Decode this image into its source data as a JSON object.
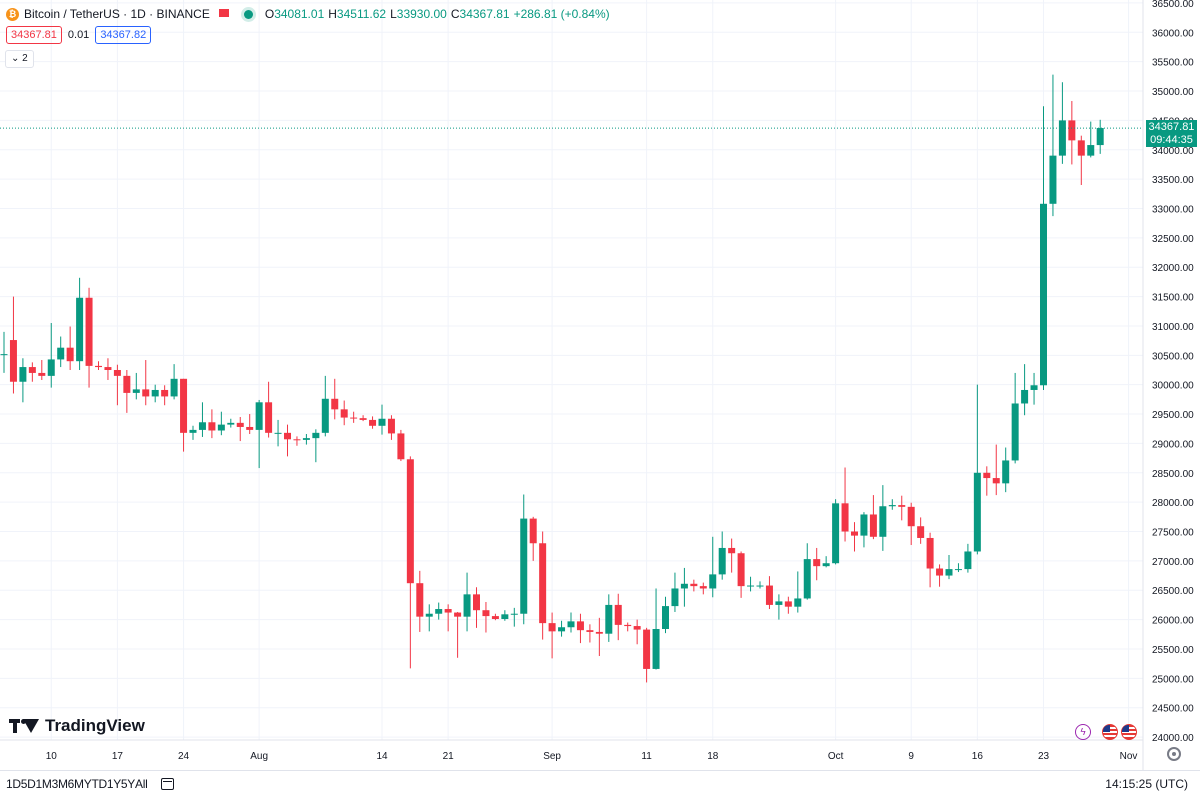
{
  "legend": {
    "symbol": "Bitcoin / TetherUS · 1D · BINANCE",
    "logo_text": "₿",
    "open_label": "O",
    "open": "34081.01",
    "high_label": "H",
    "high": "34511.62",
    "low_label": "L",
    "low": "33930.00",
    "close_label": "C",
    "close": "34367.81",
    "change": "+286.81 (+0.84%)"
  },
  "trade": {
    "sell": "34367.81",
    "spread": "0.01",
    "buy": "34367.82"
  },
  "indicators_toggle": "2",
  "logo_text": "TradingView",
  "last_price_label": {
    "price": "34367.81",
    "countdown": "09:44:35"
  },
  "footer": {
    "ranges": [
      "1D",
      "5D",
      "1M",
      "3M",
      "6M",
      "YTD",
      "1Y",
      "5Y",
      "All"
    ],
    "time": "14:15:25 (UTC)"
  },
  "colors": {
    "up": "#089981",
    "down": "#f23645",
    "text": "#131722",
    "grid": "#f0f3fa",
    "axis_text": "#131722"
  },
  "icons": [
    "bitcoin-logo-icon",
    "flag-icon",
    "market-open-dot-icon",
    "chevron-down-icon",
    "flash-icon",
    "us-flag-icon",
    "calendar-icon",
    "gear-icon"
  ],
  "chart_data": {
    "type": "candlestick",
    "title": "Bitcoin / TetherUS · 1D · BINANCE",
    "ylim": [
      23950,
      36550
    ],
    "y_ticks": [
      "36500.00",
      "36000.00",
      "35500.00",
      "35000.00",
      "34500.00",
      "34000.00",
      "33500.00",
      "33000.00",
      "32500.00",
      "32000.00",
      "31500.00",
      "31000.00",
      "30500.00",
      "30000.00",
      "29500.00",
      "29000.00",
      "28500.00",
      "28000.00",
      "27500.00",
      "27000.00",
      "26500.00",
      "26000.00",
      "25500.00",
      "25000.00",
      "24500.00",
      "24000.00"
    ],
    "x_ticks": [
      "10",
      "17",
      "24",
      "Aug",
      "14",
      "21",
      "Sep",
      "11",
      "18",
      "Oct",
      "9",
      "16",
      "23",
      "Nov"
    ],
    "x_tick_dates": [
      "2023-07-10",
      "2023-07-17",
      "2023-07-24",
      "2023-08-01",
      "2023-08-14",
      "2023-08-21",
      "2023-09-01",
      "2023-09-11",
      "2023-09-18",
      "2023-10-01",
      "2023-10-09",
      "2023-10-16",
      "2023-10-23",
      "2023-11-01"
    ],
    "last_price": 34367.81,
    "candles": [
      {
        "date": "2023-07-05",
        "o": 30520,
        "h": 30900,
        "l": 30200,
        "c": 30520
      },
      {
        "date": "2023-07-06",
        "o": 30760,
        "h": 31500,
        "l": 29850,
        "c": 30050
      },
      {
        "date": "2023-07-07",
        "o": 30050,
        "h": 30450,
        "l": 29700,
        "c": 30300
      },
      {
        "date": "2023-07-08",
        "o": 30300,
        "h": 30380,
        "l": 30050,
        "c": 30200
      },
      {
        "date": "2023-07-09",
        "o": 30200,
        "h": 30420,
        "l": 30080,
        "c": 30150
      },
      {
        "date": "2023-07-10",
        "o": 30150,
        "h": 31050,
        "l": 29950,
        "c": 30430
      },
      {
        "date": "2023-07-11",
        "o": 30430,
        "h": 30820,
        "l": 30300,
        "c": 30630
      },
      {
        "date": "2023-07-12",
        "o": 30630,
        "h": 30990,
        "l": 30250,
        "c": 30400
      },
      {
        "date": "2023-07-13",
        "o": 30400,
        "h": 31820,
        "l": 30250,
        "c": 31480
      },
      {
        "date": "2023-07-14",
        "o": 31480,
        "h": 31650,
        "l": 29950,
        "c": 30320
      },
      {
        "date": "2023-07-15",
        "o": 30320,
        "h": 30400,
        "l": 30250,
        "c": 30300
      },
      {
        "date": "2023-07-16",
        "o": 30300,
        "h": 30450,
        "l": 30080,
        "c": 30250
      },
      {
        "date": "2023-07-17",
        "o": 30250,
        "h": 30340,
        "l": 29650,
        "c": 30150
      },
      {
        "date": "2023-07-18",
        "o": 30150,
        "h": 30250,
        "l": 29520,
        "c": 29860
      },
      {
        "date": "2023-07-19",
        "o": 29860,
        "h": 30200,
        "l": 29750,
        "c": 29920
      },
      {
        "date": "2023-07-20",
        "o": 29920,
        "h": 30420,
        "l": 29650,
        "c": 29800
      },
      {
        "date": "2023-07-21",
        "o": 29800,
        "h": 30000,
        "l": 29700,
        "c": 29910
      },
      {
        "date": "2023-07-22",
        "o": 29910,
        "h": 29990,
        "l": 29650,
        "c": 29800
      },
      {
        "date": "2023-07-23",
        "o": 29800,
        "h": 30350,
        "l": 29750,
        "c": 30100
      },
      {
        "date": "2023-07-24",
        "o": 30100,
        "h": 30100,
        "l": 28860,
        "c": 29180
      },
      {
        "date": "2023-07-25",
        "o": 29180,
        "h": 29300,
        "l": 29060,
        "c": 29230
      },
      {
        "date": "2023-07-26",
        "o": 29230,
        "h": 29700,
        "l": 29110,
        "c": 29360
      },
      {
        "date": "2023-07-27",
        "o": 29360,
        "h": 29580,
        "l": 29090,
        "c": 29220
      },
      {
        "date": "2023-07-28",
        "o": 29220,
        "h": 29540,
        "l": 29140,
        "c": 29320
      },
      {
        "date": "2023-07-29",
        "o": 29320,
        "h": 29420,
        "l": 29270,
        "c": 29350
      },
      {
        "date": "2023-07-30",
        "o": 29350,
        "h": 29450,
        "l": 29040,
        "c": 29280
      },
      {
        "date": "2023-07-31",
        "o": 29280,
        "h": 29500,
        "l": 29160,
        "c": 29230
      },
      {
        "date": "2023-08-01",
        "o": 29230,
        "h": 29740,
        "l": 28580,
        "c": 29700
      },
      {
        "date": "2023-08-02",
        "o": 29700,
        "h": 30050,
        "l": 29100,
        "c": 29180
      },
      {
        "date": "2023-08-03",
        "o": 29180,
        "h": 29400,
        "l": 28950,
        "c": 29180
      },
      {
        "date": "2023-08-04",
        "o": 29180,
        "h": 29320,
        "l": 28780,
        "c": 29070
      },
      {
        "date": "2023-08-05",
        "o": 29070,
        "h": 29120,
        "l": 28960,
        "c": 29060
      },
      {
        "date": "2023-08-06",
        "o": 29060,
        "h": 29160,
        "l": 28980,
        "c": 29090
      },
      {
        "date": "2023-08-07",
        "o": 29090,
        "h": 29240,
        "l": 28680,
        "c": 29180
      },
      {
        "date": "2023-08-08",
        "o": 29180,
        "h": 30150,
        "l": 29120,
        "c": 29760
      },
      {
        "date": "2023-08-09",
        "o": 29760,
        "h": 30100,
        "l": 29410,
        "c": 29580
      },
      {
        "date": "2023-08-10",
        "o": 29580,
        "h": 29730,
        "l": 29310,
        "c": 29440
      },
      {
        "date": "2023-08-11",
        "o": 29440,
        "h": 29540,
        "l": 29350,
        "c": 29430
      },
      {
        "date": "2023-08-12",
        "o": 29430,
        "h": 29480,
        "l": 29380,
        "c": 29400
      },
      {
        "date": "2023-08-13",
        "o": 29400,
        "h": 29460,
        "l": 29250,
        "c": 29300
      },
      {
        "date": "2023-08-14",
        "o": 29300,
        "h": 29660,
        "l": 29150,
        "c": 29420
      },
      {
        "date": "2023-08-15",
        "o": 29420,
        "h": 29480,
        "l": 29060,
        "c": 29170
      },
      {
        "date": "2023-08-16",
        "o": 29170,
        "h": 29230,
        "l": 28700,
        "c": 28730
      },
      {
        "date": "2023-08-17",
        "o": 28730,
        "h": 28780,
        "l": 25170,
        "c": 26620
      },
      {
        "date": "2023-08-18",
        "o": 26620,
        "h": 26830,
        "l": 25790,
        "c": 26050
      },
      {
        "date": "2023-08-19",
        "o": 26050,
        "h": 26260,
        "l": 25800,
        "c": 26100
      },
      {
        "date": "2023-08-20",
        "o": 26100,
        "h": 26290,
        "l": 26000,
        "c": 26180
      },
      {
        "date": "2023-08-21",
        "o": 26180,
        "h": 26260,
        "l": 25800,
        "c": 26120
      },
      {
        "date": "2023-08-22",
        "o": 26120,
        "h": 26130,
        "l": 25350,
        "c": 26050
      },
      {
        "date": "2023-08-23",
        "o": 26050,
        "h": 26800,
        "l": 25800,
        "c": 26430
      },
      {
        "date": "2023-08-24",
        "o": 26430,
        "h": 26550,
        "l": 25860,
        "c": 26160
      },
      {
        "date": "2023-08-25",
        "o": 26160,
        "h": 26300,
        "l": 25780,
        "c": 26060
      },
      {
        "date": "2023-08-26",
        "o": 26060,
        "h": 26100,
        "l": 25990,
        "c": 26010
      },
      {
        "date": "2023-08-27",
        "o": 26010,
        "h": 26160,
        "l": 25980,
        "c": 26090
      },
      {
        "date": "2023-08-28",
        "o": 26090,
        "h": 26200,
        "l": 25880,
        "c": 26100
      },
      {
        "date": "2023-08-29",
        "o": 26100,
        "h": 28130,
        "l": 25920,
        "c": 27720
      },
      {
        "date": "2023-08-30",
        "o": 27720,
        "h": 27750,
        "l": 27000,
        "c": 27300
      },
      {
        "date": "2023-08-31",
        "o": 27300,
        "h": 27500,
        "l": 25660,
        "c": 25940
      },
      {
        "date": "2023-09-01",
        "o": 25940,
        "h": 26120,
        "l": 25340,
        "c": 25800
      },
      {
        "date": "2023-09-02",
        "o": 25800,
        "h": 25980,
        "l": 25710,
        "c": 25870
      },
      {
        "date": "2023-09-03",
        "o": 25870,
        "h": 26120,
        "l": 25780,
        "c": 25970
      },
      {
        "date": "2023-09-04",
        "o": 25970,
        "h": 26100,
        "l": 25600,
        "c": 25820
      },
      {
        "date": "2023-09-05",
        "o": 25820,
        "h": 25920,
        "l": 25610,
        "c": 25790
      },
      {
        "date": "2023-09-06",
        "o": 25790,
        "h": 26030,
        "l": 25380,
        "c": 25760
      },
      {
        "date": "2023-09-07",
        "o": 25760,
        "h": 26430,
        "l": 25620,
        "c": 26250
      },
      {
        "date": "2023-09-08",
        "o": 26250,
        "h": 26440,
        "l": 25650,
        "c": 25910
      },
      {
        "date": "2023-09-09",
        "o": 25910,
        "h": 25950,
        "l": 25800,
        "c": 25890
      },
      {
        "date": "2023-09-10",
        "o": 25890,
        "h": 26000,
        "l": 25580,
        "c": 25830
      },
      {
        "date": "2023-09-11",
        "o": 25830,
        "h": 25860,
        "l": 24930,
        "c": 25160
      },
      {
        "date": "2023-09-12",
        "o": 25160,
        "h": 26530,
        "l": 25150,
        "c": 25840
      },
      {
        "date": "2023-09-13",
        "o": 25840,
        "h": 26390,
        "l": 25770,
        "c": 26230
      },
      {
        "date": "2023-09-14",
        "o": 26230,
        "h": 26800,
        "l": 26130,
        "c": 26530
      },
      {
        "date": "2023-09-15",
        "o": 26530,
        "h": 26880,
        "l": 26220,
        "c": 26610
      },
      {
        "date": "2023-09-16",
        "o": 26610,
        "h": 26680,
        "l": 26480,
        "c": 26570
      },
      {
        "date": "2023-09-17",
        "o": 26570,
        "h": 26630,
        "l": 26430,
        "c": 26530
      },
      {
        "date": "2023-09-18",
        "o": 26530,
        "h": 27410,
        "l": 26380,
        "c": 26770
      },
      {
        "date": "2023-09-19",
        "o": 26770,
        "h": 27500,
        "l": 26680,
        "c": 27220
      },
      {
        "date": "2023-09-20",
        "o": 27220,
        "h": 27380,
        "l": 26800,
        "c": 27130
      },
      {
        "date": "2023-09-21",
        "o": 27130,
        "h": 27160,
        "l": 26370,
        "c": 26570
      },
      {
        "date": "2023-09-22",
        "o": 26570,
        "h": 26730,
        "l": 26480,
        "c": 26580
      },
      {
        "date": "2023-09-23",
        "o": 26580,
        "h": 26650,
        "l": 26530,
        "c": 26580
      },
      {
        "date": "2023-09-24",
        "o": 26580,
        "h": 26740,
        "l": 26180,
        "c": 26250
      },
      {
        "date": "2023-09-25",
        "o": 26250,
        "h": 26430,
        "l": 26000,
        "c": 26310
      },
      {
        "date": "2023-09-26",
        "o": 26310,
        "h": 26390,
        "l": 26100,
        "c": 26220
      },
      {
        "date": "2023-09-27",
        "o": 26220,
        "h": 26820,
        "l": 26120,
        "c": 26360
      },
      {
        "date": "2023-09-28",
        "o": 26360,
        "h": 27300,
        "l": 26340,
        "c": 27030
      },
      {
        "date": "2023-09-29",
        "o": 27030,
        "h": 27220,
        "l": 26670,
        "c": 26910
      },
      {
        "date": "2023-09-30",
        "o": 26910,
        "h": 27080,
        "l": 26890,
        "c": 26960
      },
      {
        "date": "2023-10-01",
        "o": 26960,
        "h": 28050,
        "l": 26940,
        "c": 27980
      },
      {
        "date": "2023-10-02",
        "o": 27980,
        "h": 28590,
        "l": 27330,
        "c": 27500
      },
      {
        "date": "2023-10-03",
        "o": 27500,
        "h": 27660,
        "l": 27160,
        "c": 27430
      },
      {
        "date": "2023-10-04",
        "o": 27430,
        "h": 27830,
        "l": 27230,
        "c": 27790
      },
      {
        "date": "2023-10-05",
        "o": 27790,
        "h": 28120,
        "l": 27370,
        "c": 27410
      },
      {
        "date": "2023-10-06",
        "o": 27410,
        "h": 28290,
        "l": 27170,
        "c": 27930
      },
      {
        "date": "2023-10-07",
        "o": 27930,
        "h": 28050,
        "l": 27870,
        "c": 27950
      },
      {
        "date": "2023-10-08",
        "o": 27950,
        "h": 28110,
        "l": 27690,
        "c": 27920
      },
      {
        "date": "2023-10-09",
        "o": 27920,
        "h": 27990,
        "l": 27270,
        "c": 27590
      },
      {
        "date": "2023-10-10",
        "o": 27590,
        "h": 27740,
        "l": 27290,
        "c": 27390
      },
      {
        "date": "2023-10-11",
        "o": 27390,
        "h": 27480,
        "l": 26550,
        "c": 26870
      },
      {
        "date": "2023-10-12",
        "o": 26870,
        "h": 26940,
        "l": 26560,
        "c": 26750
      },
      {
        "date": "2023-10-13",
        "o": 26750,
        "h": 27100,
        "l": 26690,
        "c": 26860
      },
      {
        "date": "2023-10-14",
        "o": 26860,
        "h": 26960,
        "l": 26810,
        "c": 26860
      },
      {
        "date": "2023-10-15",
        "o": 26860,
        "h": 27290,
        "l": 26800,
        "c": 27160
      },
      {
        "date": "2023-10-16",
        "o": 27160,
        "h": 30000,
        "l": 27110,
        "c": 28500
      },
      {
        "date": "2023-10-17",
        "o": 28500,
        "h": 28610,
        "l": 28110,
        "c": 28410
      },
      {
        "date": "2023-10-18",
        "o": 28410,
        "h": 28980,
        "l": 28120,
        "c": 28320
      },
      {
        "date": "2023-10-19",
        "o": 28320,
        "h": 28930,
        "l": 28170,
        "c": 28710
      },
      {
        "date": "2023-10-20",
        "o": 28710,
        "h": 30200,
        "l": 28660,
        "c": 29680
      },
      {
        "date": "2023-10-21",
        "o": 29680,
        "h": 30350,
        "l": 29480,
        "c": 29910
      },
      {
        "date": "2023-10-22",
        "o": 29910,
        "h": 30200,
        "l": 29660,
        "c": 29990
      },
      {
        "date": "2023-10-23",
        "o": 29990,
        "h": 34740,
        "l": 29910,
        "c": 33080
      },
      {
        "date": "2023-10-24",
        "o": 33080,
        "h": 35280,
        "l": 32870,
        "c": 33900
      },
      {
        "date": "2023-10-25",
        "o": 33900,
        "h": 35150,
        "l": 33760,
        "c": 34500
      },
      {
        "date": "2023-10-26",
        "o": 34500,
        "h": 34830,
        "l": 33750,
        "c": 34160
      },
      {
        "date": "2023-10-27",
        "o": 34160,
        "h": 34240,
        "l": 33400,
        "c": 33900
      },
      {
        "date": "2023-10-28",
        "o": 33900,
        "h": 34480,
        "l": 33870,
        "c": 34080
      },
      {
        "date": "2023-10-29",
        "o": 34080,
        "h": 34510,
        "l": 33930,
        "c": 34370
      }
    ]
  }
}
